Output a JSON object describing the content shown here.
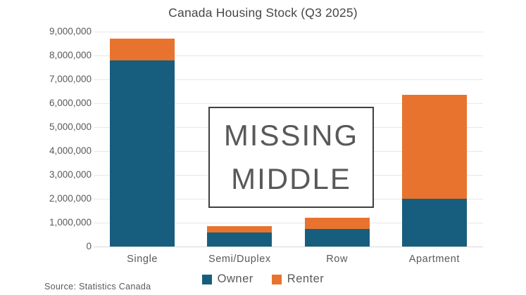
{
  "title": "Canada Housing Stock (Q3 2025)",
  "source": "Source: Statistics Canada",
  "annotation": {
    "line1": "MISSING",
    "line2": "MIDDLE"
  },
  "colors": {
    "owner": "#175e7e",
    "renter": "#e8732e",
    "grid": "#e7e7e7",
    "axis_text": "#595959",
    "title_text": "#474747",
    "annotation_border": "#3f3f3f",
    "annotation_text": "#595959"
  },
  "chart_data": {
    "type": "bar",
    "stacked": true,
    "title": "Canada Housing Stock (Q3 2025)",
    "categories": [
      "Single",
      "Semi/Duplex",
      "Row",
      "Apartment"
    ],
    "series": [
      {
        "name": "Owner",
        "color": "#175e7e",
        "values": [
          7800000,
          600000,
          750000,
          2000000
        ]
      },
      {
        "name": "Renter",
        "color": "#e8732e",
        "values": [
          900000,
          250000,
          450000,
          4350000
        ]
      }
    ],
    "totals": [
      8700000,
      850000,
      1200000,
      6350000
    ],
    "ylim": [
      0,
      9000000
    ],
    "ytick_interval": 1000000,
    "yticks_top_to_bottom": [
      "9,000,000",
      "8,000,000",
      "7,000,000",
      "6,000,000",
      "5,000,000",
      "4,000,000",
      "3,000,000",
      "2,000,000",
      "1,000,000",
      "0"
    ],
    "xlabel": "",
    "ylabel": "",
    "grid": true,
    "legend_position": "bottom",
    "annotation_text": "MISSING MIDDLE",
    "source": "Source: Statistics Canada"
  }
}
